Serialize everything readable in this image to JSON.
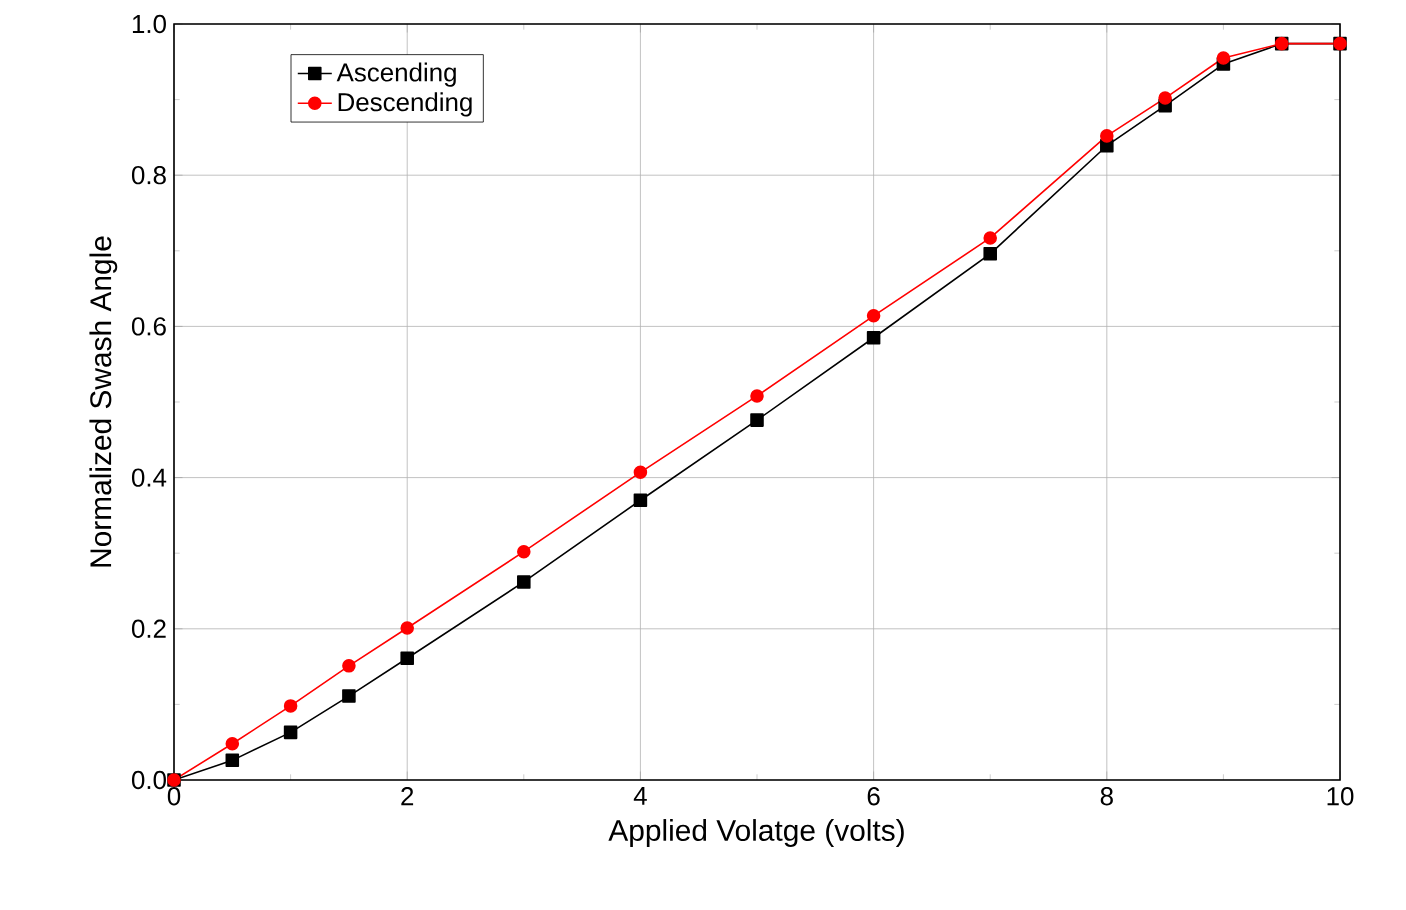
{
  "chart_data": {
    "type": "line",
    "xlabel": "Applied Volatge (volts)",
    "ylabel": "Normalized Swash Angle",
    "x": [
      0,
      0.5,
      1,
      1.5,
      2,
      3,
      4,
      5,
      6,
      7,
      8,
      8.5,
      9,
      9.5,
      10
    ],
    "series": [
      {
        "name": "Ascending",
        "color": "#000000",
        "marker": "square",
        "values": [
          0,
          0.026,
          0.063,
          0.111,
          0.161,
          0.262,
          0.37,
          0.476,
          0.585,
          0.696,
          0.839,
          0.892,
          0.947,
          0.974,
          0.974
        ]
      },
      {
        "name": "Descending",
        "color": "#ff0000",
        "marker": "circle",
        "values": [
          0,
          0.048,
          0.098,
          0.151,
          0.201,
          0.302,
          0.407,
          0.508,
          0.614,
          0.717,
          0.852,
          0.902,
          0.955,
          0.974,
          0.974
        ]
      }
    ],
    "xlim": [
      0,
      10
    ],
    "ylim": [
      0,
      1.0
    ],
    "xticks": [
      0,
      2,
      4,
      6,
      8,
      10
    ],
    "yticks": [
      {
        "value": 0,
        "label": "0.0"
      },
      {
        "value": 0.2,
        "label": "0.2"
      },
      {
        "value": 0.4,
        "label": "0.4"
      },
      {
        "value": 0.6,
        "label": "0.6"
      },
      {
        "value": 0.8,
        "label": "0.8"
      },
      {
        "value": 1.0,
        "label": "1.0"
      }
    ],
    "grid": true,
    "legend": "top left",
    "line_style": "solid"
  }
}
